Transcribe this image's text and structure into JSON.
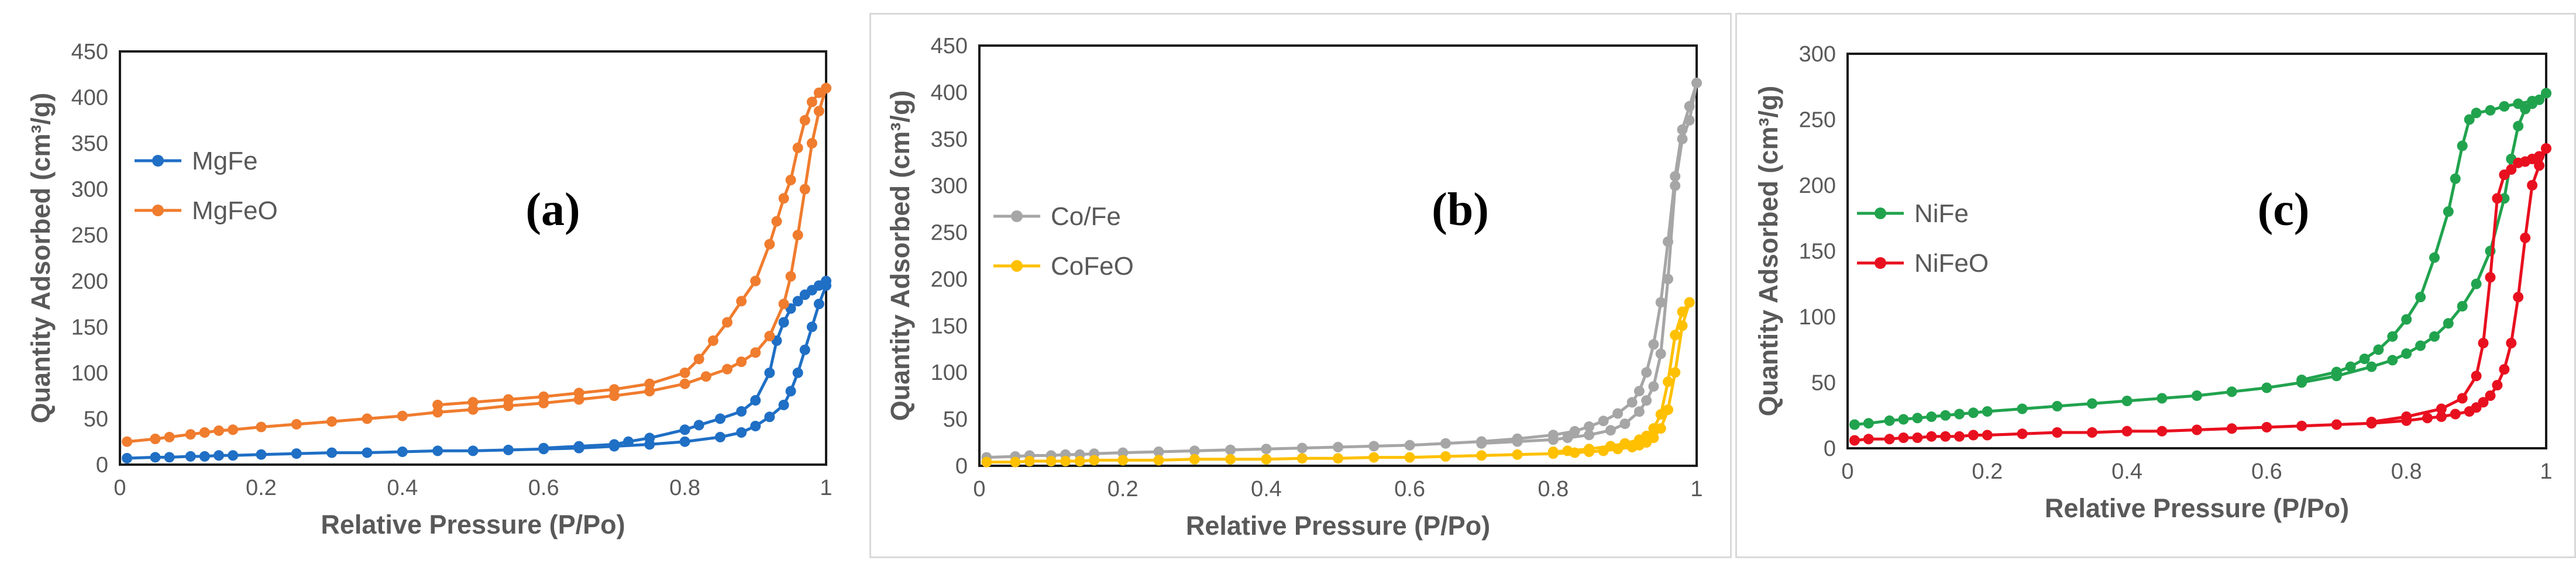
{
  "colors": {
    "blue": "#1f6fc5",
    "orange": "#f07c2e",
    "gray": "#a6a6a6",
    "gold": "#ffc000",
    "green": "#21a34e",
    "red": "#e8101f",
    "axis_text": "#595959",
    "grid": "#d9d9d9"
  },
  "chart_data": [
    {
      "type": "line",
      "title": "",
      "panel_label": "(a)",
      "xlabel": "Relative Pressure (P/Po)",
      "ylabel": "Quantity Adsorbed (cm³/g)",
      "xlim": [
        0,
        1
      ],
      "ylim": [
        0,
        450
      ],
      "x_ticks": [
        "0",
        "0.2",
        "0.4",
        "0.6",
        "0.8",
        "1"
      ],
      "x_tick_values": [
        0,
        0.2,
        0.4,
        0.6,
        0.8,
        1
      ],
      "y_ticks": [
        "0",
        "50",
        "100",
        "150",
        "200",
        "250",
        "300",
        "350",
        "400",
        "450"
      ],
      "y_tick_values": [
        0,
        50,
        100,
        150,
        200,
        250,
        300,
        350,
        400,
        450
      ],
      "legend_position": "top-left",
      "series": [
        {
          "name": "MgFe",
          "color_key": "blue",
          "adsorption": {
            "x": [
              0.01,
              0.05,
              0.07,
              0.1,
              0.12,
              0.14,
              0.16,
              0.2,
              0.25,
              0.3,
              0.35,
              0.4,
              0.45,
              0.5,
              0.55,
              0.6,
              0.65,
              0.7,
              0.75,
              0.8,
              0.85,
              0.88,
              0.9,
              0.92,
              0.94,
              0.95,
              0.96,
              0.97,
              0.98,
              0.99,
              1.0
            ],
            "y": [
              7,
              8,
              8,
              9,
              9,
              10,
              10,
              11,
              12,
              13,
              13,
              14,
              15,
              15,
              16,
              17,
              18,
              20,
              22,
              25,
              30,
              35,
              42,
              52,
              65,
              80,
              100,
              125,
              150,
              175,
              195
            ]
          },
          "desorption": {
            "x": [
              1.0,
              0.99,
              0.98,
              0.97,
              0.96,
              0.95,
              0.94,
              0.93,
              0.92,
              0.9,
              0.88,
              0.85,
              0.82,
              0.8,
              0.75,
              0.72,
              0.7,
              0.65,
              0.6
            ],
            "y": [
              200,
              195,
              190,
              185,
              178,
              170,
              155,
              135,
              100,
              70,
              58,
              50,
              43,
              38,
              29,
              25,
              22,
              20,
              18
            ]
          }
        },
        {
          "name": "MgFeO",
          "color_key": "orange",
          "adsorption": {
            "x": [
              0.01,
              0.05,
              0.07,
              0.1,
              0.12,
              0.14,
              0.16,
              0.2,
              0.25,
              0.3,
              0.35,
              0.4,
              0.45,
              0.5,
              0.55,
              0.6,
              0.65,
              0.7,
              0.75,
              0.8,
              0.83,
              0.86,
              0.88,
              0.9,
              0.92,
              0.94,
              0.95,
              0.96,
              0.97,
              0.98,
              0.99,
              1.0
            ],
            "y": [
              25,
              28,
              30,
              33,
              35,
              37,
              38,
              41,
              44,
              47,
              50,
              53,
              57,
              60,
              64,
              67,
              71,
              75,
              80,
              88,
              96,
              104,
              112,
              122,
              140,
              175,
              205,
              250,
              300,
              350,
              385,
              410
            ]
          },
          "desorption": {
            "x": [
              1.0,
              0.99,
              0.98,
              0.97,
              0.96,
              0.95,
              0.94,
              0.93,
              0.92,
              0.9,
              0.88,
              0.86,
              0.84,
              0.82,
              0.8,
              0.75,
              0.7,
              0.65,
              0.6,
              0.55,
              0.5,
              0.45
            ],
            "y": [
              410,
              405,
              395,
              375,
              345,
              310,
              290,
              265,
              240,
              200,
              178,
              155,
              135,
              115,
              100,
              88,
              82,
              78,
              74,
              71,
              68,
              65
            ]
          }
        }
      ]
    },
    {
      "type": "line",
      "title": "",
      "panel_label": "(b)",
      "xlabel": "Relative Pressure (P/Po)",
      "ylabel": "Quantity Adsorbed (cm³/g)",
      "xlim": [
        0,
        1
      ],
      "ylim": [
        0,
        450
      ],
      "x_ticks": [
        "0",
        "0.2",
        "0.4",
        "0.6",
        "0.8",
        "1"
      ],
      "x_tick_values": [
        0,
        0.2,
        0.4,
        0.6,
        0.8,
        1
      ],
      "y_ticks": [
        "0",
        "50",
        "100",
        "150",
        "200",
        "250",
        "300",
        "350",
        "400",
        "450"
      ],
      "y_tick_values": [
        0,
        50,
        100,
        150,
        200,
        250,
        300,
        350,
        400,
        450
      ],
      "legend_position": "top-left",
      "series": [
        {
          "name": "Co/Fe",
          "color_key": "gray",
          "adsorption": {
            "x": [
              0.01,
              0.05,
              0.07,
              0.1,
              0.12,
              0.14,
              0.16,
              0.2,
              0.25,
              0.3,
              0.35,
              0.4,
              0.45,
              0.5,
              0.55,
              0.6,
              0.65,
              0.7,
              0.75,
              0.8,
              0.83,
              0.85,
              0.87,
              0.89,
              0.91,
              0.92,
              0.93,
              0.94,
              0.95,
              0.96,
              0.97,
              0.98,
              0.99,
              1.0
            ],
            "y": [
              9,
              10,
              11,
              11,
              12,
              12,
              13,
              14,
              15,
              16,
              17,
              18,
              19,
              20,
              21,
              22,
              24,
              26,
              29,
              33,
              37,
              42,
              48,
              56,
              68,
              80,
              100,
              130,
              175,
              240,
              310,
              360,
              385,
              410
            ]
          },
          "desorption": {
            "x": [
              1.0,
              0.99,
              0.98,
              0.97,
              0.96,
              0.95,
              0.94,
              0.93,
              0.92,
              0.9,
              0.88,
              0.85,
              0.82,
              0.8,
              0.75,
              0.7
            ],
            "y": [
              410,
              370,
              350,
              300,
              200,
              120,
              85,
              70,
              58,
              45,
              38,
              33,
              30,
              28,
              26,
              24
            ]
          }
        },
        {
          "name": "CoFeO",
          "color_key": "gold",
          "adsorption": {
            "x": [
              0.01,
              0.05,
              0.07,
              0.1,
              0.12,
              0.14,
              0.16,
              0.2,
              0.25,
              0.3,
              0.35,
              0.4,
              0.45,
              0.5,
              0.55,
              0.6,
              0.65,
              0.7,
              0.75,
              0.8,
              0.83,
              0.85,
              0.87,
              0.89,
              0.91,
              0.92,
              0.93,
              0.94,
              0.95,
              0.96,
              0.97,
              0.98,
              0.99
            ],
            "y": [
              4,
              4,
              5,
              5,
              5,
              5,
              6,
              6,
              6,
              7,
              7,
              7,
              8,
              8,
              9,
              9,
              10,
              11,
              12,
              13,
              14,
              15,
              16,
              18,
              20,
              22,
              25,
              30,
              40,
              60,
              100,
              150,
              175
            ]
          },
          "desorption": {
            "x": [
              0.99,
              0.98,
              0.97,
              0.96,
              0.95,
              0.94,
              0.93,
              0.92,
              0.9,
              0.88,
              0.85,
              0.82,
              0.8
            ],
            "y": [
              175,
              165,
              140,
              90,
              55,
              40,
              32,
              28,
              24,
              21,
              18,
              16,
              15
            ]
          }
        }
      ]
    },
    {
      "type": "line",
      "title": "",
      "panel_label": "(c)",
      "xlabel": "Relative Pressure (P/Po)",
      "ylabel": "Quantity Adsorbed (cm³/g)",
      "xlim": [
        0,
        1
      ],
      "ylim": [
        0,
        300
      ],
      "x_ticks": [
        "0",
        "0.2",
        "0.4",
        "0.6",
        "0.8",
        "1"
      ],
      "x_tick_values": [
        0,
        0.2,
        0.4,
        0.6,
        0.8,
        1
      ],
      "y_ticks": [
        "0",
        "50",
        "100",
        "150",
        "200",
        "250",
        "300"
      ],
      "y_tick_values": [
        0,
        50,
        100,
        150,
        200,
        250,
        300
      ],
      "legend_position": "top-left",
      "series": [
        {
          "name": "NiFe",
          "color_key": "green",
          "adsorption": {
            "x": [
              0.01,
              0.03,
              0.06,
              0.08,
              0.1,
              0.12,
              0.14,
              0.16,
              0.18,
              0.2,
              0.25,
              0.3,
              0.35,
              0.4,
              0.45,
              0.5,
              0.55,
              0.6,
              0.65,
              0.7,
              0.75,
              0.78,
              0.8,
              0.82,
              0.84,
              0.86,
              0.88,
              0.9,
              0.92,
              0.94,
              0.95,
              0.96,
              0.97,
              0.98,
              0.99,
              1.0
            ],
            "y": [
              18,
              19,
              21,
              22,
              23,
              24,
              25,
              26,
              27,
              28,
              30,
              32,
              34,
              36,
              38,
              40,
              43,
              46,
              50,
              55,
              62,
              67,
              72,
              78,
              85,
              95,
              108,
              125,
              150,
              190,
              220,
              245,
              258,
              262,
              265,
              270
            ]
          },
          "desorption": {
            "x": [
              1.0,
              0.98,
              0.96,
              0.94,
              0.92,
              0.9,
              0.89,
              0.88,
              0.87,
              0.86,
              0.84,
              0.82,
              0.8,
              0.78,
              0.76,
              0.74,
              0.72,
              0.7,
              0.65
            ],
            "y": [
              270,
              264,
              262,
              260,
              257,
              255,
              250,
              230,
              205,
              180,
              145,
              115,
              98,
              85,
              75,
              68,
              62,
              58,
              52
            ]
          }
        },
        {
          "name": "NiFeO",
          "color_key": "red",
          "adsorption": {
            "x": [
              0.01,
              0.03,
              0.06,
              0.08,
              0.1,
              0.12,
              0.14,
              0.16,
              0.18,
              0.2,
              0.25,
              0.3,
              0.35,
              0.4,
              0.45,
              0.5,
              0.55,
              0.6,
              0.65,
              0.7,
              0.75,
              0.8,
              0.83,
              0.85,
              0.87,
              0.89,
              0.9,
              0.91,
              0.92,
              0.93,
              0.94,
              0.95,
              0.96,
              0.97,
              0.98,
              0.99,
              1.0
            ],
            "y": [
              6,
              7,
              7,
              8,
              8,
              9,
              9,
              9,
              10,
              10,
              11,
              12,
              12,
              13,
              13,
              14,
              15,
              16,
              17,
              18,
              19,
              21,
              23,
              24,
              26,
              28,
              31,
              35,
              40,
              48,
              60,
              80,
              115,
              160,
              200,
              215,
              228
            ]
          },
          "desorption": {
            "x": [
              1.0,
              0.99,
              0.98,
              0.97,
              0.96,
              0.95,
              0.94,
              0.93,
              0.92,
              0.91,
              0.9,
              0.88,
              0.85,
              0.8,
              0.75
            ],
            "y": [
              228,
              222,
              220,
              218,
              217,
              212,
              208,
              190,
              130,
              80,
              55,
              38,
              30,
              24,
              20
            ]
          }
        }
      ]
    }
  ]
}
